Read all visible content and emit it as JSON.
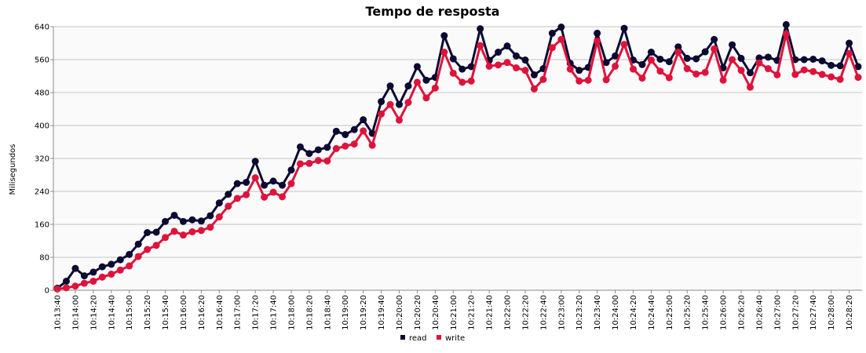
{
  "chart_data": {
    "type": "line",
    "title": "Tempo de resposta",
    "xlabel": "",
    "ylabel": "Milisegundos",
    "ylim": [
      0,
      640
    ],
    "yticks": [
      "0",
      "80",
      "160",
      "240",
      "320",
      "400",
      "480",
      "560",
      "640"
    ],
    "grid": true,
    "legend_position": "bottom-center",
    "categories": [
      "10:13:40",
      "10:13:50",
      "10:14:00",
      "10:14:10",
      "10:14:20",
      "10:14:30",
      "10:14:40",
      "10:14:50",
      "10:15:00",
      "10:15:10",
      "10:15:20",
      "10:15:30",
      "10:15:40",
      "10:15:50",
      "10:16:00",
      "10:16:10",
      "10:16:20",
      "10:16:30",
      "10:16:40",
      "10:16:50",
      "10:17:00",
      "10:17:10",
      "10:17:20",
      "10:17:30",
      "10:17:40",
      "10:17:50",
      "10:18:00",
      "10:18:10",
      "10:18:20",
      "10:18:30",
      "10:18:40",
      "10:18:50",
      "10:19:00",
      "10:19:10",
      "10:19:20",
      "10:19:30",
      "10:19:40",
      "10:19:50",
      "10:20:00",
      "10:20:10",
      "10:20:20",
      "10:20:30",
      "10:20:40",
      "10:20:50",
      "10:21:00",
      "10:21:10",
      "10:21:20",
      "10:21:30",
      "10:21:40",
      "10:21:50",
      "10:22:00",
      "10:22:10",
      "10:22:20",
      "10:22:30",
      "10:22:40",
      "10:22:50",
      "10:23:00",
      "10:23:10",
      "10:23:20",
      "10:23:30",
      "10:23:40",
      "10:23:50",
      "10:24:00",
      "10:24:10",
      "10:24:20",
      "10:24:30",
      "10:24:40",
      "10:24:50",
      "10:25:00",
      "10:25:10",
      "10:25:20",
      "10:25:30",
      "10:25:40",
      "10:25:50",
      "10:26:00",
      "10:26:10",
      "10:26:20",
      "10:26:30",
      "10:26:40",
      "10:26:50",
      "10:27:00",
      "10:27:10",
      "10:27:20",
      "10:27:30",
      "10:27:40",
      "10:27:50",
      "10:28:00",
      "10:28:10",
      "10:28:20",
      "10:28:30"
    ],
    "x_tick_labels": [
      "10:13:40",
      "10:14:00",
      "10:14:20",
      "10:14:40",
      "10:15:00",
      "10:15:20",
      "10:15:40",
      "10:16:00",
      "10:16:20",
      "10:16:40",
      "10:17:00",
      "10:17:20",
      "10:17:40",
      "10:18:00",
      "10:18:20",
      "10:18:40",
      "10:19:00",
      "10:19:20",
      "10:19:40",
      "10:20:00",
      "10:20:20",
      "10:20:40",
      "10:21:00",
      "10:21:20",
      "10:21:40",
      "10:22:00",
      "10:22:20",
      "10:22:40",
      "10:23:00",
      "10:23:20",
      "10:23:40",
      "10:24:00",
      "10:24:20",
      "10:24:40",
      "10:25:00",
      "10:25:20",
      "10:25:40",
      "10:26:00",
      "10:26:20",
      "10:26:40",
      "10:27:00",
      "10:27:20",
      "10:27:40",
      "10:28:00",
      "10:28:20"
    ],
    "series": [
      {
        "name": "read",
        "color": "#0a0a32",
        "values": [
          5,
          22,
          53,
          35,
          44,
          57,
          63,
          74,
          87,
          112,
          140,
          141,
          167,
          182,
          167,
          171,
          168,
          181,
          212,
          233,
          259,
          262,
          313,
          255,
          265,
          255,
          292,
          348,
          332,
          341,
          347,
          386,
          378,
          390,
          414,
          381,
          458,
          496,
          451,
          496,
          543,
          510,
          517,
          618,
          562,
          537,
          543,
          635,
          558,
          578,
          593,
          569,
          559,
          523,
          538,
          624,
          639,
          551,
          534,
          541,
          624,
          553,
          569,
          636,
          559,
          548,
          578,
          561,
          555,
          591,
          563,
          562,
          579,
          609,
          540,
          596,
          563,
          528,
          564,
          566,
          558,
          645,
          560,
          560,
          561,
          557,
          546,
          545,
          600,
          543
        ]
      },
      {
        "name": "write",
        "color": "#dc143c",
        "values": [
          3,
          6,
          10,
          17,
          22,
          32,
          39,
          49,
          59,
          82,
          99,
          109,
          128,
          143,
          134,
          142,
          145,
          153,
          178,
          204,
          223,
          232,
          273,
          226,
          238,
          227,
          259,
          307,
          308,
          315,
          314,
          344,
          350,
          355,
          387,
          352,
          428,
          451,
          413,
          456,
          505,
          467,
          491,
          578,
          527,
          505,
          508,
          594,
          544,
          547,
          553,
          540,
          534,
          489,
          512,
          589,
          609,
          537,
          508,
          510,
          605,
          511,
          544,
          597,
          537,
          515,
          559,
          532,
          516,
          578,
          538,
          525,
          529,
          586,
          510,
          560,
          534,
          493,
          552,
          538,
          523,
          622,
          524,
          535,
          531,
          524,
          518,
          512,
          575,
          517
        ]
      }
    ]
  }
}
